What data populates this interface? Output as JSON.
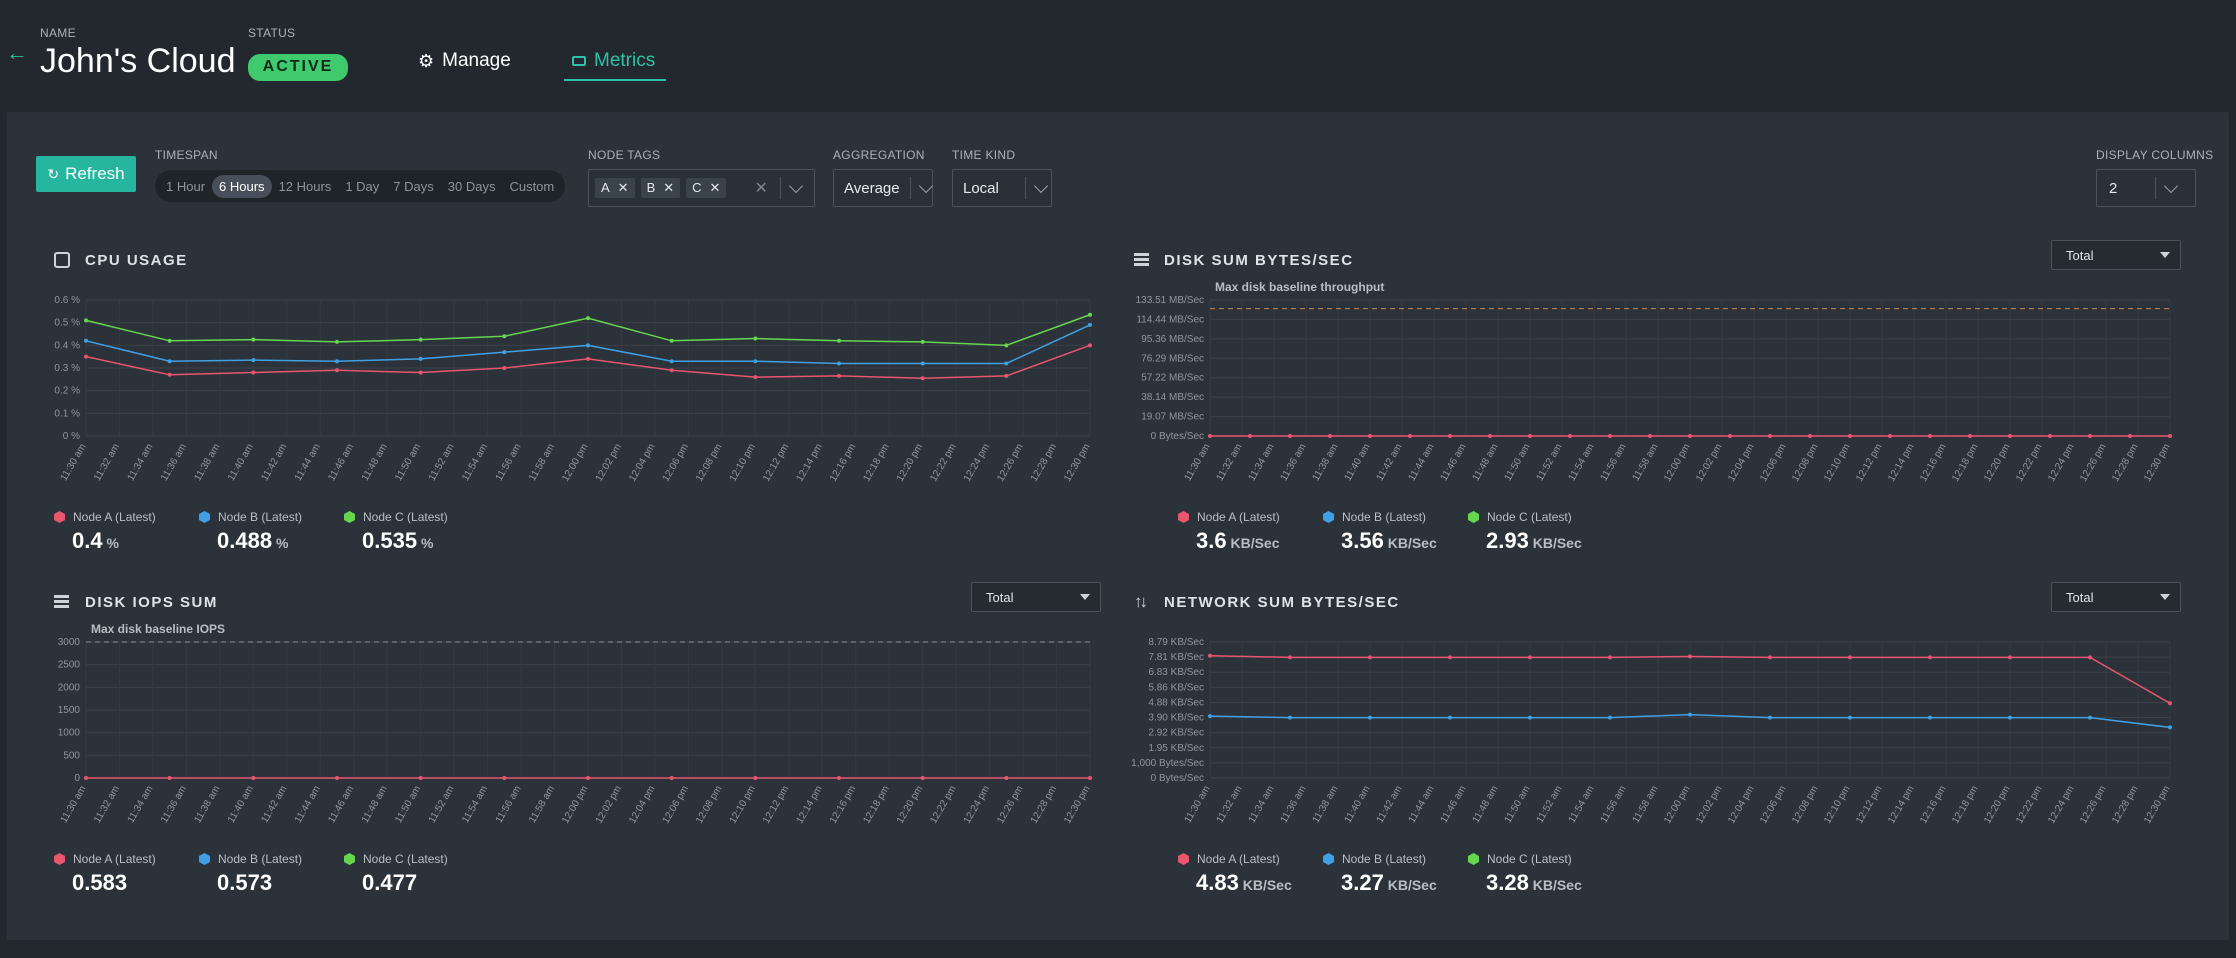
{
  "header": {
    "name_label": "NAME",
    "name": "John's Cloud",
    "status_label": "STATUS",
    "status": "ACTIVE",
    "tabs": [
      {
        "label": "Manage",
        "icon": "gear-icon"
      },
      {
        "label": "Metrics",
        "icon": "metrics-icon",
        "active": true
      }
    ]
  },
  "toolbar": {
    "refresh_label": "Refresh",
    "timespan_label": "TIMESPAN",
    "timespans": [
      "1 Hour",
      "6 Hours",
      "12 Hours",
      "1 Day",
      "7 Days",
      "30 Days",
      "Custom"
    ],
    "timespan_selected": "6 Hours",
    "node_tags_label": "NODE TAGS",
    "node_tags": [
      "A",
      "B",
      "C"
    ],
    "aggregation_label": "AGGREGATION",
    "aggregation": "Average",
    "time_kind_label": "TIME KIND",
    "time_kind": "Local",
    "display_columns_label": "DISPLAY COLUMNS",
    "display_columns": "2"
  },
  "colors": {
    "node_a": "#e8556e",
    "node_b": "#3fa0e6",
    "node_c": "#67d64f"
  },
  "x_ticks": [
    "11:30 am",
    "11:32 am",
    "11:34 am",
    "11:36 am",
    "11:38 am",
    "11:40 am",
    "11:42 am",
    "11:44 am",
    "11:46 am",
    "11:48 am",
    "11:50 am",
    "11:52 am",
    "11:54 am",
    "11:56 am",
    "11:58 am",
    "12:00 pm",
    "12:02 pm",
    "12:04 pm",
    "12:06 pm",
    "12:08 pm",
    "12:10 pm",
    "12:12 pm",
    "12:14 pm",
    "12:16 pm",
    "12:18 pm",
    "12:20 pm",
    "12:22 pm",
    "12:24 pm",
    "12:26 pm",
    "12:28 pm",
    "12:30 pm"
  ],
  "charts": {
    "cpu": {
      "title": "CPU USAGE",
      "y_ticks": [
        "0.6 %",
        "0.5 %",
        "0.4 %",
        "0.3 %",
        "0.2 %",
        "0.1 %",
        "0 %"
      ],
      "legend": [
        {
          "name": "Node A (Latest)",
          "value": "0.4",
          "unit": "%"
        },
        {
          "name": "Node B (Latest)",
          "value": "0.488",
          "unit": "%"
        },
        {
          "name": "Node C (Latest)",
          "value": "0.535",
          "unit": "%"
        }
      ]
    },
    "disk_bytes": {
      "title": "DISK SUM BYTES/SEC",
      "dropdown": "Total",
      "baseline_label": "Max disk baseline throughput",
      "y_ticks": [
        "133.51 MB/Sec",
        "114.44 MB/Sec",
        "95.36 MB/Sec",
        "76.29 MB/Sec",
        "57.22 MB/Sec",
        "38.14 MB/Sec",
        "19.07 MB/Sec",
        "0 Bytes/Sec"
      ],
      "legend": [
        {
          "name": "Node A (Latest)",
          "value": "3.6",
          "unit": "KB/Sec"
        },
        {
          "name": "Node B (Latest)",
          "value": "3.56",
          "unit": "KB/Sec"
        },
        {
          "name": "Node C (Latest)",
          "value": "2.93",
          "unit": "KB/Sec"
        }
      ]
    },
    "disk_iops": {
      "title": "DISK IOPS SUM",
      "dropdown": "Total",
      "baseline_label": "Max disk baseline IOPS",
      "y_ticks": [
        "3000",
        "2500",
        "2000",
        "1500",
        "1000",
        "500",
        "0"
      ],
      "legend": [
        {
          "name": "Node A (Latest)",
          "value": "0.583",
          "unit": ""
        },
        {
          "name": "Node B (Latest)",
          "value": "0.573",
          "unit": ""
        },
        {
          "name": "Node C (Latest)",
          "value": "0.477",
          "unit": ""
        }
      ]
    },
    "network": {
      "title": "NETWORK SUM BYTES/SEC",
      "dropdown": "Total",
      "y_ticks": [
        "8.79 KB/Sec",
        "7.81 KB/Sec",
        "6.83 KB/Sec",
        "5.86 KB/Sec",
        "4.88 KB/Sec",
        "3.90 KB/Sec",
        "2.92 KB/Sec",
        "1.95 KB/Sec",
        "1,000 Bytes/Sec",
        "0 Bytes/Sec"
      ],
      "legend": [
        {
          "name": "Node A (Latest)",
          "value": "4.83",
          "unit": "KB/Sec"
        },
        {
          "name": "Node B (Latest)",
          "value": "3.27",
          "unit": "KB/Sec"
        },
        {
          "name": "Node C (Latest)",
          "value": "3.28",
          "unit": "KB/Sec"
        }
      ]
    }
  },
  "chart_data": [
    {
      "type": "line",
      "title": "CPU USAGE",
      "ylim": [
        0,
        0.6
      ],
      "series": [
        {
          "name": "Node A (Latest)",
          "values": [
            0.35,
            0.27,
            0.28,
            0.29,
            0.28,
            0.3,
            0.34,
            0.29,
            0.26,
            0.265,
            0.255,
            0.265,
            0.4
          ]
        },
        {
          "name": "Node B (Latest)",
          "values": [
            0.42,
            0.33,
            0.335,
            0.33,
            0.34,
            0.37,
            0.4,
            0.33,
            0.33,
            0.32,
            0.32,
            0.32,
            0.49
          ]
        },
        {
          "name": "Node C (Latest)",
          "values": [
            0.51,
            0.42,
            0.425,
            0.415,
            0.425,
            0.44,
            0.52,
            0.42,
            0.43,
            0.42,
            0.415,
            0.4,
            0.535
          ]
        }
      ]
    },
    {
      "type": "line",
      "title": "DISK SUM BYTES/SEC",
      "ylim": [
        0,
        133.51
      ],
      "baseline": 125,
      "series": [
        {
          "name": "Node A (Latest)",
          "values": [
            0,
            0,
            0,
            0,
            0,
            0,
            0,
            0,
            0,
            0,
            0,
            0,
            0,
            0,
            0,
            0,
            0,
            0,
            0,
            0,
            0,
            0,
            0,
            0,
            0
          ]
        }
      ]
    },
    {
      "type": "line",
      "title": "DISK IOPS SUM",
      "ylim": [
        0,
        3000
      ],
      "baseline": 3000,
      "series": [
        {
          "name": "Node A (Latest)",
          "values": [
            0,
            0,
            0,
            0,
            0,
            0,
            0,
            0,
            0,
            0,
            0,
            0,
            0
          ]
        }
      ]
    },
    {
      "type": "line",
      "title": "NETWORK SUM BYTES/SEC",
      "ylim": [
        0,
        8.79
      ],
      "series": [
        {
          "name": "Node A (Latest)",
          "values": [
            7.9,
            7.8,
            7.8,
            7.8,
            7.8,
            7.8,
            7.85,
            7.8,
            7.8,
            7.8,
            7.8,
            7.8,
            4.83
          ]
        },
        {
          "name": "Node B (Latest)",
          "values": [
            4.0,
            3.9,
            3.9,
            3.9,
            3.9,
            3.9,
            4.1,
            3.9,
            3.9,
            3.9,
            3.9,
            3.9,
            3.27
          ]
        }
      ]
    }
  ]
}
